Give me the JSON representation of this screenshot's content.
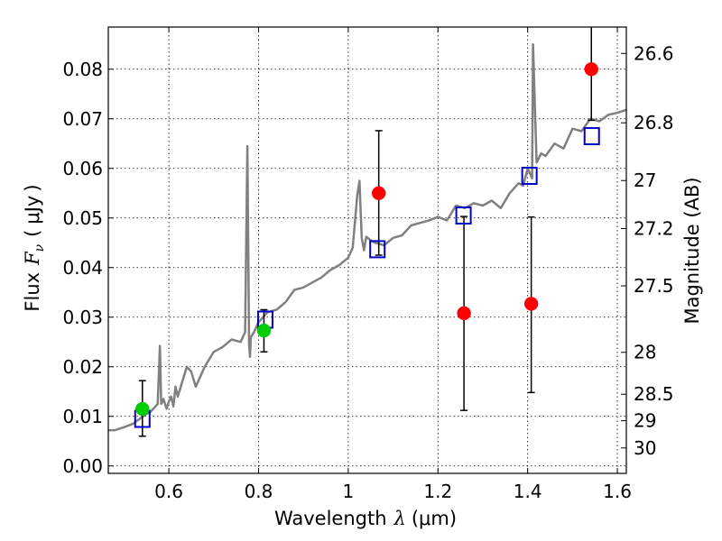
{
  "chart_data": {
    "type": "scatter",
    "title": "",
    "xlabel": {
      "text": "Wavelength",
      "symbol": "λ",
      "unit": "(μm)"
    },
    "ylabel": {
      "text": "Flux",
      "symbol": "F",
      "subscript": "ν",
      "unit_open": "(",
      "unit": "μJy",
      "unit_close": ")"
    },
    "y2label": "Magnitude (AB)",
    "xlim": [
      0.465,
      1.62
    ],
    "ylim": [
      -0.0015,
      0.0885
    ],
    "grid": true,
    "xticks": [
      0.6,
      0.8,
      1.0,
      1.2,
      1.4,
      1.6
    ],
    "xtick_labels": [
      "0.6",
      "0.8",
      "1",
      "1.2",
      "1.4",
      "1.6"
    ],
    "yticks": [
      0.0,
      0.01,
      0.02,
      0.03,
      0.04,
      0.05,
      0.06,
      0.07,
      0.08
    ],
    "ytick_labels": [
      "0.00",
      "0.01",
      "0.02",
      "0.03",
      "0.04",
      "0.05",
      "0.06",
      "0.07",
      "0.08"
    ],
    "y2ticks": [
      26.6,
      26.8,
      27.0,
      27.2,
      27.5,
      28.0,
      28.5,
      29.0,
      30.0
    ],
    "y2tick_labels": [
      "26.6",
      "26.8",
      "27",
      "27.2",
      "27.5",
      "28",
      "28.5",
      "29",
      "30"
    ],
    "series": [
      {
        "kind": "spectrum",
        "color": "#808080",
        "x": [
          0.465,
          0.48,
          0.5,
          0.52,
          0.535,
          0.55,
          0.56,
          0.575,
          0.58,
          0.583,
          0.588,
          0.595,
          0.6,
          0.605,
          0.61,
          0.615,
          0.62,
          0.63,
          0.64,
          0.65,
          0.66,
          0.68,
          0.7,
          0.72,
          0.74,
          0.76,
          0.77,
          0.775,
          0.779,
          0.781,
          0.783,
          0.79,
          0.8,
          0.82,
          0.84,
          0.86,
          0.88,
          0.9,
          0.92,
          0.94,
          0.96,
          0.98,
          1.0,
          1.01,
          1.02,
          1.025,
          1.03,
          1.035,
          1.04,
          1.05,
          1.06,
          1.08,
          1.1,
          1.12,
          1.14,
          1.16,
          1.18,
          1.2,
          1.22,
          1.24,
          1.26,
          1.28,
          1.3,
          1.32,
          1.34,
          1.36,
          1.38,
          1.39,
          1.4,
          1.41,
          1.412,
          1.415,
          1.42,
          1.43,
          1.44,
          1.46,
          1.48,
          1.5,
          1.52,
          1.54,
          1.56,
          1.58,
          1.6,
          1.62
        ],
        "y": [
          0.0072,
          0.0072,
          0.0078,
          0.0085,
          0.0095,
          0.0105,
          0.011,
          0.0125,
          0.0242,
          0.0125,
          0.0135,
          0.0115,
          0.013,
          0.014,
          0.012,
          0.016,
          0.014,
          0.017,
          0.02,
          0.019,
          0.016,
          0.02,
          0.023,
          0.024,
          0.0255,
          0.025,
          0.027,
          0.0645,
          0.0245,
          0.022,
          0.026,
          0.027,
          0.029,
          0.031,
          0.0315,
          0.033,
          0.0355,
          0.036,
          0.037,
          0.038,
          0.0395,
          0.0405,
          0.042,
          0.044,
          0.0545,
          0.0575,
          0.046,
          0.0435,
          0.0462,
          0.0455,
          0.045,
          0.0445,
          0.046,
          0.0465,
          0.0485,
          0.049,
          0.0495,
          0.0502,
          0.0495,
          0.0525,
          0.052,
          0.053,
          0.0525,
          0.0535,
          0.052,
          0.055,
          0.057,
          0.0565,
          0.06,
          0.058,
          0.085,
          0.076,
          0.0612,
          0.063,
          0.0625,
          0.065,
          0.064,
          0.068,
          0.0675,
          0.07,
          0.0695,
          0.0708,
          0.0712,
          0.0718
        ]
      },
      {
        "kind": "model_points",
        "color": "#0000cc",
        "marker": "square",
        "x": [
          0.541,
          0.815,
          1.065,
          1.257,
          1.404,
          1.543
        ],
        "y": [
          0.0095,
          0.0295,
          0.0437,
          0.0505,
          0.0585,
          0.0665
        ]
      },
      {
        "kind": "observed_green",
        "color": "#00cc00",
        "marker": "circle",
        "x": [
          0.541,
          0.812
        ],
        "y": [
          0.0115,
          0.0273
        ],
        "yerr_low": [
          0.006,
          0.023
        ],
        "yerr_high": [
          0.0172,
          0.0315
        ]
      },
      {
        "kind": "observed_red",
        "color": "#ff0000",
        "marker": "circle",
        "x": [
          1.068,
          1.258,
          1.408,
          1.542
        ],
        "y": [
          0.055,
          0.0308,
          0.0327,
          0.08
        ],
        "yerr_low": [
          0.0425,
          0.0112,
          0.0148,
          0.0697
        ],
        "yerr_high": [
          0.0676,
          0.0503,
          0.0502,
          0.0885
        ]
      }
    ]
  }
}
